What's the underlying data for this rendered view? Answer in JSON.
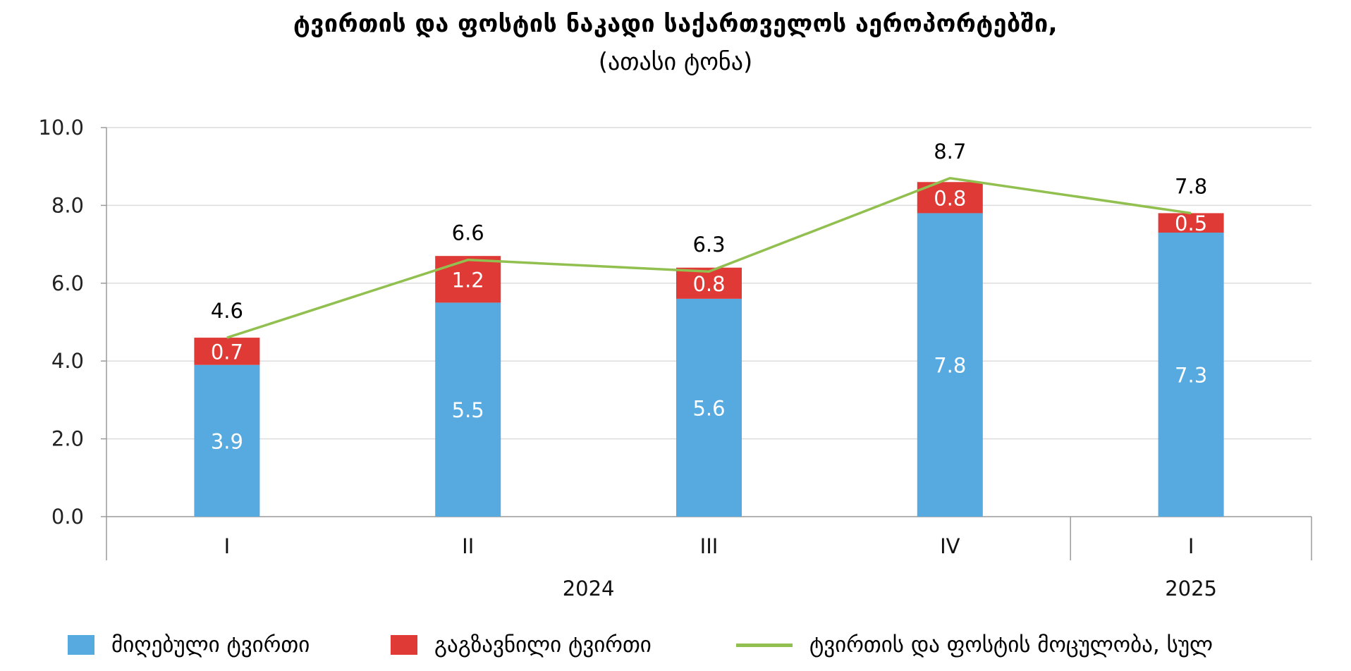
{
  "chart_data": {
    "type": "bar",
    "title": "ტვირთის და ფოსტის ნაკადი საქართველოს აეროპორტებში,",
    "subtitle": "(ათასი ტონა)",
    "categories": [
      "I",
      "II",
      "III",
      "IV",
      "I"
    ],
    "years": [
      {
        "label": "2024",
        "start": 0,
        "end": 3
      },
      {
        "label": "2025",
        "start": 4,
        "end": 4
      }
    ],
    "ylim": [
      0,
      10
    ],
    "yticks": [
      "0.0",
      "2.0",
      "4.0",
      "6.0",
      "8.0",
      "10.0"
    ],
    "grid": true,
    "legend_position": "bottom",
    "series": [
      {
        "name": "მიღებული ტვირთი",
        "kind": "bar",
        "color": "#56aae0",
        "values": [
          3.9,
          5.5,
          5.6,
          7.8,
          7.3
        ],
        "labels": [
          "3.9",
          "5.5",
          "5.6",
          "7.8",
          "7.3"
        ]
      },
      {
        "name": "გაგზავნილი ტვირთი",
        "kind": "bar",
        "color": "#e03a36",
        "values": [
          0.7,
          1.2,
          0.8,
          0.8,
          0.5
        ],
        "labels": [
          "0.7",
          "1.2",
          "0.8",
          "0.8",
          "0.5"
        ]
      },
      {
        "name": "ტვირთის და ფოსტის მოცულობა, სულ",
        "kind": "line",
        "color": "#92c050",
        "values": [
          4.6,
          6.6,
          6.3,
          8.7,
          7.8
        ],
        "labels": [
          "4.6",
          "6.6",
          "6.3",
          "8.7",
          "7.8"
        ]
      }
    ]
  }
}
